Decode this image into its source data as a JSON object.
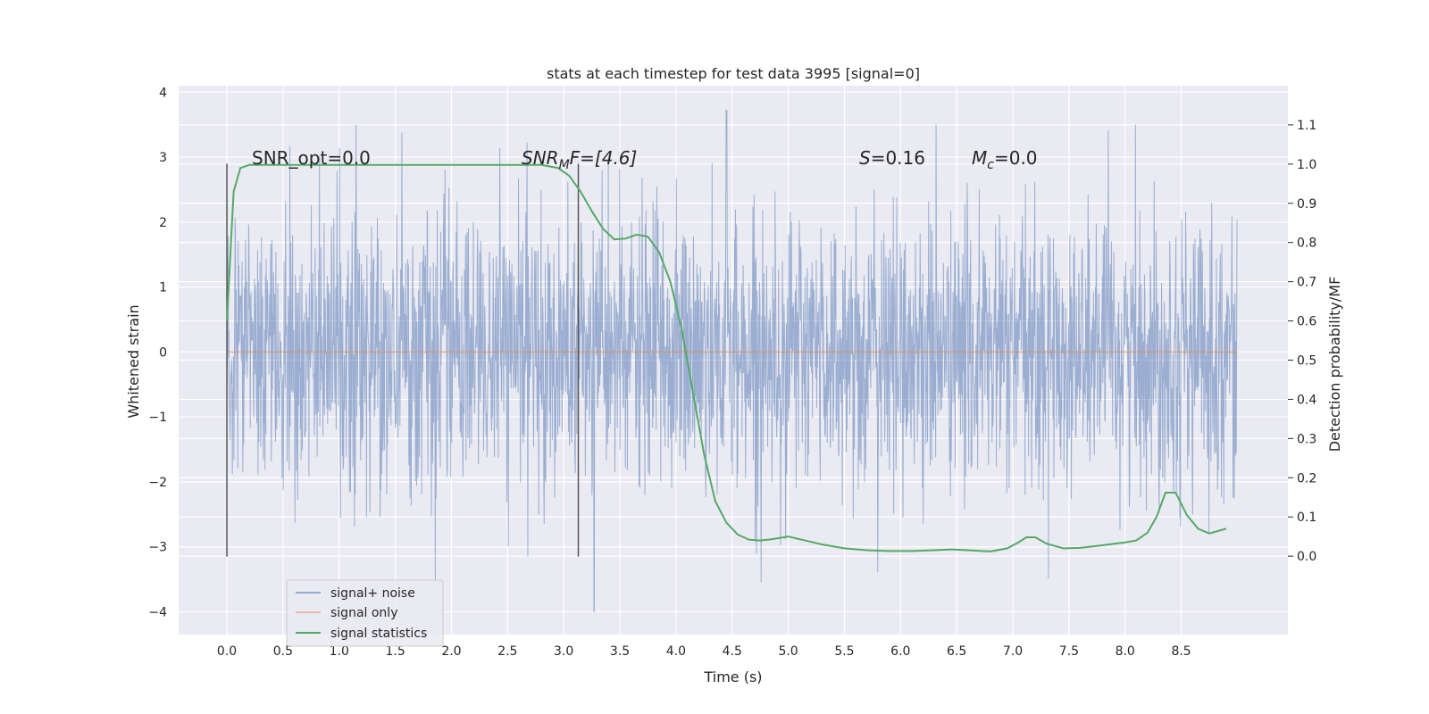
{
  "chart_data": {
    "type": "line",
    "title": "stats at each timestep for test data 3995 [signal=0]",
    "xlabel": "Time (s)",
    "ylabel": "Whitened strain",
    "ylabel_right": "Detection probability/MF",
    "xlim": [
      -0.43,
      9.45
    ],
    "ylim": [
      -4.35,
      4.1
    ],
    "ylim_right": [
      -0.2,
      1.2
    ],
    "x_ticks": [
      "0.0",
      "0.5",
      "1.0",
      "1.5",
      "2.0",
      "2.5",
      "3.0",
      "3.5",
      "4.0",
      "4.5",
      "5.0",
      "5.5",
      "6.0",
      "6.5",
      "7.0",
      "7.5",
      "8.0",
      "8.5"
    ],
    "x_tick_values": [
      0,
      0.5,
      1,
      1.5,
      2,
      2.5,
      3,
      3.5,
      4,
      4.5,
      5,
      5.5,
      6,
      6.5,
      7,
      7.5,
      8,
      8.5
    ],
    "y_ticks": [
      "−4",
      "−3",
      "−2",
      "−1",
      "0",
      "1",
      "2",
      "3",
      "4"
    ],
    "y_tick_values": [
      -4,
      -3,
      -2,
      -1,
      0,
      1,
      2,
      3,
      4
    ],
    "y_right_ticks": [
      "0.0",
      "0.1",
      "0.2",
      "0.3",
      "0.4",
      "0.5",
      "0.6",
      "0.7",
      "0.8",
      "0.9",
      "1.0",
      "1.1"
    ],
    "y_right_tick_values": [
      0,
      0.1,
      0.2,
      0.3,
      0.4,
      0.5,
      0.6,
      0.7,
      0.8,
      0.9,
      1.0,
      1.1
    ],
    "grid": true,
    "legend_position": "lower-left",
    "annotations": {
      "snr_opt": "SNR_opt=0.0",
      "snr_mf_main": "SNR",
      "snr_mf_sub": "M",
      "snr_mf_rest": "F=[4.6]",
      "s_main": "S",
      "s_rest": "=0.16",
      "mc_main": "M",
      "mc_sub": "c",
      "mc_rest": "=0.0"
    },
    "vlines": [
      {
        "x": 0.0,
        "y_range": [
          -3.15,
          2.9
        ]
      },
      {
        "x": 3.13,
        "y_range": [
          -3.15,
          2.9
        ]
      }
    ],
    "series": [
      {
        "name": "signal+ noise",
        "color": "#4c72b0",
        "opacity": 0.5,
        "t_range": [
          0,
          9.0
        ],
        "std": 1.05,
        "extremes": {
          "max": 3.72,
          "min": -4.0
        }
      },
      {
        "name": "signal only",
        "color": "#dd8452",
        "opacity": 0.6,
        "x": [
          0,
          9.0
        ],
        "y": [
          0,
          0
        ]
      },
      {
        "name": "signal statistics",
        "color": "#55a868",
        "axis": "right",
        "x": [
          0,
          0.06,
          0.12,
          0.2,
          0.3,
          0.5,
          1.0,
          1.5,
          2.0,
          2.5,
          2.8,
          2.95,
          3.05,
          3.15,
          3.25,
          3.35,
          3.45,
          3.55,
          3.65,
          3.75,
          3.85,
          3.95,
          4.05,
          4.15,
          4.25,
          4.35,
          4.45,
          4.55,
          4.65,
          4.75,
          4.85,
          5.0,
          5.15,
          5.3,
          5.5,
          5.7,
          5.9,
          6.1,
          6.3,
          6.45,
          6.6,
          6.8,
          6.95,
          7.05,
          7.12,
          7.2,
          7.3,
          7.45,
          7.6,
          7.8,
          8.0,
          8.1,
          8.2,
          8.28,
          8.36,
          8.45,
          8.55,
          8.65,
          8.75,
          8.9
        ],
        "y": [
          0.6,
          0.93,
          0.99,
          0.998,
          0.998,
          0.998,
          0.998,
          0.998,
          0.998,
          0.998,
          0.998,
          0.99,
          0.97,
          0.93,
          0.88,
          0.835,
          0.808,
          0.81,
          0.82,
          0.815,
          0.775,
          0.7,
          0.58,
          0.42,
          0.26,
          0.14,
          0.085,
          0.055,
          0.042,
          0.04,
          0.043,
          0.05,
          0.04,
          0.03,
          0.02,
          0.015,
          0.013,
          0.013,
          0.015,
          0.017,
          0.015,
          0.012,
          0.02,
          0.035,
          0.048,
          0.048,
          0.032,
          0.02,
          0.021,
          0.028,
          0.035,
          0.04,
          0.06,
          0.1,
          0.162,
          0.162,
          0.105,
          0.07,
          0.058,
          0.07
        ]
      }
    ]
  }
}
